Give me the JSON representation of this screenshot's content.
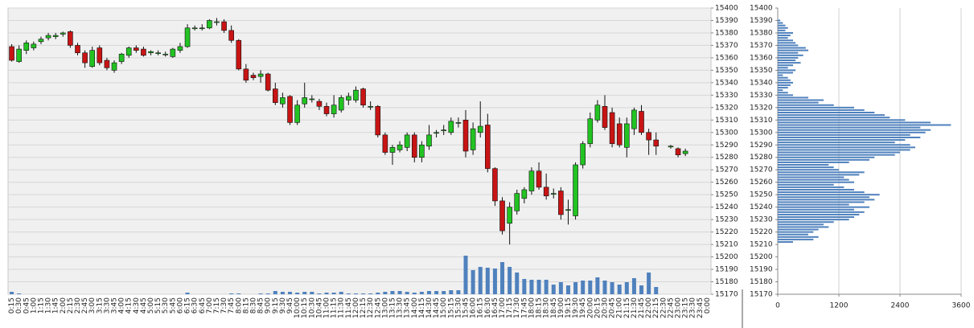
{
  "chart_data": [
    {
      "type": "candlestick",
      "categories": [
        "0:15",
        "0:30",
        "0:45",
        "1:00",
        "1:15",
        "1:30",
        "1:45",
        "2:00",
        "2:15",
        "2:30",
        "2:45",
        "3:00",
        "3:15",
        "3:30",
        "3:45",
        "4:00",
        "4:15",
        "4:30",
        "4:45",
        "5:00",
        "5:15",
        "5:30",
        "5:45",
        "6:00",
        "6:15",
        "6:30",
        "6:45",
        "7:00",
        "7:15",
        "7:30",
        "7:45",
        "8:00",
        "8:15",
        "8:30",
        "8:45",
        "9:00",
        "9:15",
        "9:30",
        "9:45",
        "10:00",
        "10:15",
        "10:30",
        "10:45",
        "11:00",
        "11:15",
        "11:30",
        "11:45",
        "12:00",
        "12:15",
        "12:30",
        "12:45",
        "13:00",
        "13:15",
        "13:30",
        "13:45",
        "14:00",
        "14:15",
        "14:30",
        "14:45",
        "15:00",
        "15:15",
        "15:30",
        "15:45",
        "16:00",
        "16:15",
        "16:30",
        "16:45",
        "17:00",
        "17:15",
        "17:30",
        "17:45",
        "18:00",
        "18:15",
        "18:30",
        "18:45",
        "19:00",
        "19:15",
        "19:30",
        "19:45",
        "20:00",
        "20:15",
        "20:30",
        "20:45",
        "21:00",
        "21:15",
        "21:30",
        "21:45",
        "22:00",
        "22:15",
        "22:30",
        "22:45",
        "23:00",
        "23:15",
        "23:30",
        "23:45",
        "0:00"
      ],
      "open": [
        15369,
        15357,
        15366,
        15368,
        15373,
        15376,
        15377,
        15379,
        15381,
        15370,
        15364,
        15353,
        15368,
        15358,
        15350,
        15357,
        15362,
        15368,
        15367,
        15364,
        15364,
        15363,
        15361,
        15366,
        15369,
        15384,
        15384,
        15384,
        15389,
        15389,
        15382,
        15374,
        15351,
        15346,
        15345,
        15347,
        15335,
        15323,
        15329,
        15308,
        15323,
        15327,
        15325,
        15321,
        15315,
        15318,
        15326,
        15326,
        15335,
        15321,
        15321,
        15298,
        15284,
        15286,
        15288,
        15298,
        15280,
        15289,
        15300,
        15302,
        15300,
        15308,
        15310,
        15286,
        15300,
        15306,
        15271,
        15245,
        15227,
        15237,
        15247,
        15253,
        15269,
        15256,
        15251,
        15253,
        15238,
        15233,
        15274,
        15291,
        15310,
        15321,
        15316,
        15307,
        15288,
        15303,
        15317,
        15300,
        15294,
        null,
        15289,
        15287,
        15283,
        null,
        null,
        null
      ],
      "high": [
        15371,
        15370,
        15374,
        15373,
        15377,
        15380,
        15380,
        15381,
        15382,
        15372,
        15366,
        15369,
        15370,
        15360,
        15358,
        15364,
        15369,
        15370,
        15369,
        15366,
        15366,
        15365,
        15368,
        15372,
        15387,
        15386,
        15387,
        15391,
        15392,
        15391,
        15386,
        15375,
        15355,
        15348,
        15350,
        15348,
        15340,
        15332,
        15330,
        15326,
        15340,
        15330,
        15327,
        15324,
        15330,
        15330,
        15332,
        15337,
        15336,
        15325,
        15322,
        15300,
        15290,
        15293,
        15300,
        15300,
        15293,
        15306,
        15302,
        15306,
        15312,
        15312,
        15318,
        15308,
        15325,
        15315,
        15272,
        15248,
        15244,
        15254,
        15256,
        15272,
        15276,
        15267,
        15255,
        15256,
        15246,
        15276,
        15293,
        15316,
        15326,
        15330,
        15320,
        15312,
        15312,
        15320,
        15322,
        15303,
        15300,
        null,
        15290,
        15288,
        15287,
        null,
        null,
        null
      ],
      "low": [
        15357,
        15356,
        15363,
        15366,
        15371,
        15374,
        15375,
        15377,
        15368,
        15362,
        15352,
        15352,
        15354,
        15350,
        15348,
        15355,
        15360,
        15364,
        15361,
        15362,
        15362,
        15361,
        15360,
        15364,
        15368,
        15382,
        15382,
        15383,
        15386,
        15380,
        15372,
        15350,
        15340,
        15342,
        15340,
        15333,
        15322,
        15320,
        15306,
        15306,
        15320,
        15324,
        15318,
        15313,
        15312,
        15316,
        15322,
        15324,
        15320,
        15318,
        15296,
        15282,
        15274,
        15284,
        15285,
        15276,
        15276,
        15286,
        15296,
        15298,
        15298,
        15304,
        15280,
        15282,
        15296,
        15268,
        15241,
        15218,
        15210,
        15234,
        15243,
        15250,
        15254,
        15246,
        15247,
        15230,
        15226,
        15230,
        15271,
        15288,
        15308,
        15302,
        15288,
        15288,
        15280,
        15298,
        15298,
        15282,
        15282,
        null,
        15287,
        15280,
        15281,
        null,
        null,
        null
      ],
      "close": [
        15358,
        15367,
        15372,
        15371,
        15375,
        15378,
        15378,
        15380,
        15370,
        15364,
        15356,
        15366,
        15356,
        15352,
        15356,
        15363,
        15368,
        15366,
        15362,
        15365,
        15364,
        15363,
        15367,
        15369,
        15384,
        15384,
        15384,
        15390,
        15389,
        15382,
        15374,
        15351,
        15342,
        15344,
        15347,
        15334,
        15324,
        15328,
        15308,
        15322,
        15328,
        15327,
        15321,
        15315,
        15322,
        15328,
        15329,
        15334,
        15322,
        15321,
        15298,
        15284,
        15288,
        15290,
        15298,
        15280,
        15290,
        15298,
        15300,
        15302,
        15309,
        15308,
        15285,
        15303,
        15305,
        15271,
        15245,
        15221,
        15240,
        15251,
        15254,
        15269,
        15256,
        15249,
        15251,
        15234,
        15238,
        15274,
        15291,
        15311,
        15322,
        15304,
        15291,
        15290,
        15307,
        15318,
        15300,
        15294,
        15289,
        null,
        15289,
        15282,
        15285,
        null,
        null,
        null
      ],
      "volume": [
        3,
        1,
        0,
        0,
        0,
        0,
        0,
        0,
        0,
        0,
        0,
        0,
        0,
        0,
        0,
        0,
        0,
        0,
        0,
        0,
        0,
        0,
        0,
        0,
        2,
        0,
        0,
        0,
        0,
        0,
        1,
        1,
        0,
        0,
        1,
        1,
        4,
        3,
        3,
        2,
        3,
        3,
        1,
        2,
        2,
        3,
        1,
        1,
        1,
        1,
        2,
        3,
        4,
        4,
        3,
        2,
        3,
        4,
        4,
        4,
        5,
        5,
        48,
        30,
        34,
        33,
        32,
        40,
        34,
        27,
        19,
        18,
        18,
        18,
        12,
        15,
        11,
        15,
        17,
        17,
        21,
        17,
        15,
        12,
        15,
        20,
        11,
        27,
        9,
        null,
        0,
        0,
        0,
        null,
        null,
        null
      ],
      "up_color": "#22c322",
      "down_color": "#c81414",
      "volume_color": "#4f81bd",
      "ylim": [
        15170,
        15400
      ],
      "yticks": [
        15170,
        15180,
        15190,
        15200,
        15210,
        15220,
        15230,
        15240,
        15250,
        15260,
        15270,
        15280,
        15290,
        15300,
        15310,
        15320,
        15330,
        15340,
        15350,
        15360,
        15370,
        15380,
        15390,
        15400
      ],
      "y2lim": [
        0,
        356
      ],
      "grid": true
    },
    {
      "type": "barh",
      "y": [
        15212,
        15214,
        15216,
        15218,
        15220,
        15222,
        15224,
        15226,
        15228,
        15230,
        15232,
        15234,
        15236,
        15238,
        15240,
        15242,
        15244,
        15246,
        15248,
        15250,
        15252,
        15254,
        15256,
        15258,
        15260,
        15262,
        15264,
        15266,
        15268,
        15270,
        15272,
        15274,
        15276,
        15278,
        15280,
        15282,
        15284,
        15286,
        15288,
        15290,
        15292,
        15294,
        15296,
        15298,
        15300,
        15302,
        15304,
        15306,
        15308,
        15310,
        15312,
        15314,
        15316,
        15318,
        15320,
        15322,
        15324,
        15326,
        15328,
        15330,
        15332,
        15334,
        15336,
        15338,
        15340,
        15342,
        15344,
        15346,
        15348,
        15350,
        15352,
        15354,
        15356,
        15358,
        15360,
        15362,
        15364,
        15366,
        15368,
        15370,
        15372,
        15374,
        15376,
        15378,
        15380,
        15382,
        15384,
        15386,
        15388,
        15390
      ],
      "values": [
        300,
        700,
        800,
        600,
        700,
        800,
        1000,
        900,
        1100,
        1400,
        1500,
        1600,
        1700,
        1500,
        1800,
        1400,
        1700,
        1900,
        1800,
        2000,
        1700,
        1500,
        1300,
        1100,
        1500,
        1400,
        1300,
        1600,
        1700,
        1200,
        1100,
        1000,
        1400,
        1800,
        1900,
        2300,
        2400,
        2600,
        2700,
        2600,
        2300,
        2500,
        2800,
        2600,
        2900,
        3000,
        2800,
        3400,
        3000,
        2500,
        2200,
        2100,
        1900,
        1700,
        1500,
        1100,
        800,
        900,
        600,
        300,
        200,
        100,
        200,
        250,
        300,
        250,
        200,
        100,
        300,
        350,
        200,
        300,
        450,
        350,
        400,
        500,
        400,
        600,
        550,
        400,
        350,
        300,
        200,
        250,
        300,
        150,
        200,
        150,
        100,
        50
      ],
      "color": "#4f81bd",
      "xlim": [
        0,
        3600
      ],
      "xticks": [
        0,
        1200,
        2400,
        3600
      ],
      "ylim": [
        15170,
        15400
      ],
      "yticks": [
        15170,
        15180,
        15190,
        15200,
        15210,
        15220,
        15230,
        15240,
        15250,
        15260,
        15270,
        15280,
        15290,
        15300,
        15310,
        15320,
        15330,
        15340,
        15350,
        15360,
        15370,
        15380,
        15390,
        15400
      ],
      "grid": true
    }
  ]
}
